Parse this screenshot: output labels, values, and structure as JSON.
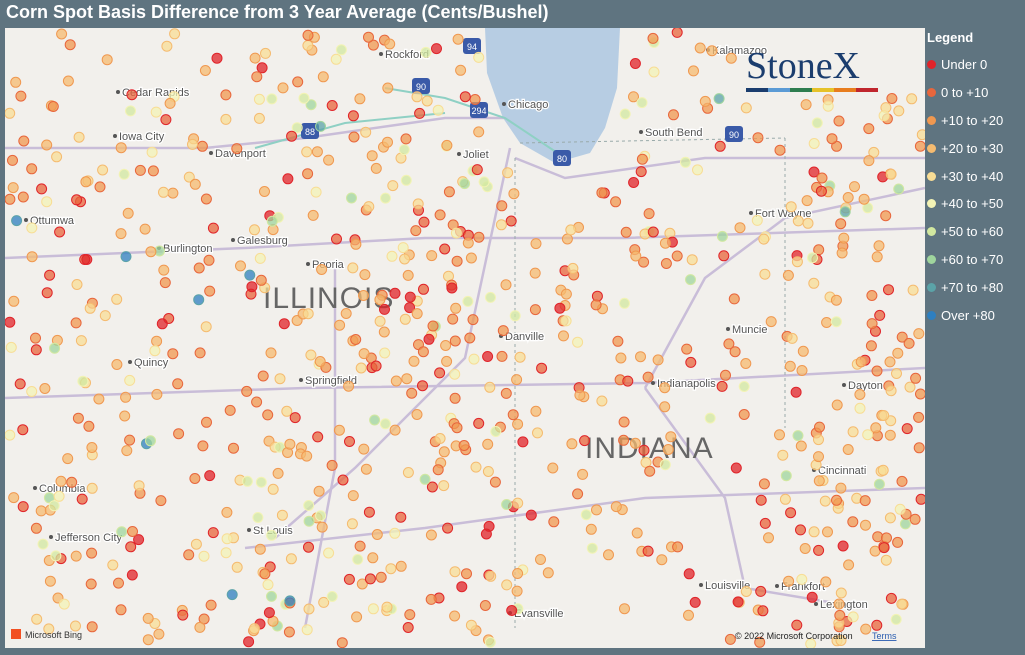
{
  "header": {
    "title": "Corn Spot Basis Difference from 3 Year Average (Cents/Bushel)"
  },
  "legend": {
    "title": "Legend",
    "items": [
      {
        "label": "Under 0",
        "color": "#e0242a"
      },
      {
        "label": "0 to +10",
        "color": "#e8663c"
      },
      {
        "label": "+10 to +20",
        "color": "#f09850"
      },
      {
        "label": "+20 to +30",
        "color": "#f5bb70"
      },
      {
        "label": "+30 to +40",
        "color": "#f8dd95"
      },
      {
        "label": "+40 to +50",
        "color": "#f3f3b5"
      },
      {
        "label": "+50 to +60",
        "color": "#d2e8a0"
      },
      {
        "label": "+60 to +70",
        "color": "#9fd59d"
      },
      {
        "label": "+70 to +80",
        "color": "#5ba3a8"
      },
      {
        "label": "Over +80",
        "color": "#2e7fc0"
      }
    ]
  },
  "map": {
    "cities": [
      "Rockford",
      "Chicago",
      "Cedar Rapids",
      "Iowa City",
      "Davenport",
      "Joliet",
      "South Bend",
      "Kalamazoo",
      "Ottumwa",
      "Burlington",
      "Galesburg",
      "Peoria",
      "Fort Wayne",
      "Muncie",
      "Danville",
      "Quincy",
      "Springfield",
      "Indianapolis",
      "Dayton",
      "Columbia",
      "Cincinnati",
      "St Louis",
      "Jefferson City",
      "Louisville",
      "Frankfort",
      "Evansville",
      "Lexington"
    ],
    "states": [
      "ILLINOIS",
      "INDIANA"
    ],
    "shields": [
      "94",
      "88",
      "90",
      "294",
      "80",
      "90"
    ],
    "logo": "StoneX",
    "attribution": "Microsoft Bing",
    "copyright": "© 2022 Microsoft Corporation",
    "terms": "Terms"
  }
}
